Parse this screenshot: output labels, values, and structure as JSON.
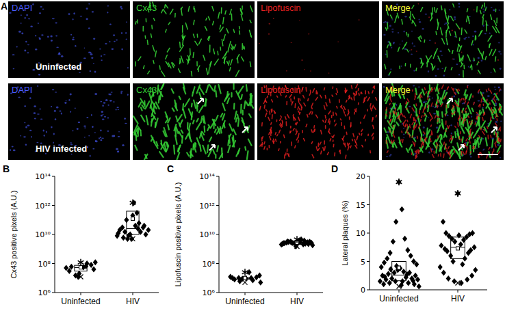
{
  "image_panel": {
    "panel_label": "A",
    "channels": [
      {
        "name": "DAPI",
        "color": "#4a5cff"
      },
      {
        "name": "Cx43",
        "color": "#35d035"
      },
      {
        "name": "Lipofuscin",
        "color": "#e82020"
      },
      {
        "name": "Merge",
        "color": "#f0f030"
      }
    ],
    "rows": [
      "Uninfected",
      "HIV infected"
    ]
  },
  "chart_data": [
    {
      "type": "box",
      "panel_label": "B",
      "y_label": "Cx43 positive pixels (A.U.)",
      "log": "y",
      "marker": "diamond",
      "color": "#000000",
      "xlim": [
        0.5,
        2.5
      ],
      "xticks": [
        {
          "value": 1,
          "label": "Uninfected"
        },
        {
          "value": 2,
          "label": "HIV"
        }
      ],
      "ylim": [
        1000000.0,
        100000000000000.0
      ],
      "yticks": [
        {
          "value": 1000000.0,
          "label": "10⁶"
        },
        {
          "value": 100000000.0,
          "label": "10⁸"
        },
        {
          "value": 10000000000.0,
          "label": "10¹⁰"
        },
        {
          "value": 1000000000000.0,
          "label": "10¹²"
        },
        {
          "value": 100000000000000.0,
          "label": "10¹⁴"
        }
      ],
      "series": [
        {
          "x": [
            0.72,
            0.82,
            0.9,
            0.97,
            1.05,
            1.12,
            1.2,
            1.28,
            0.78,
            0.95,
            1.1,
            1.25
          ],
          "values": [
            50000000.0,
            60000000.0,
            15000000.0,
            20000000.0,
            55000000.0,
            100000000.0,
            80000000.0,
            120000000.0,
            30000000.0,
            12000000.0,
            65000000.0,
            40000000.0
          ],
          "box": {
            "q1": 30000000.0,
            "median": 52000000.0,
            "q3": 75000000.0,
            "mean": 54000000.0,
            "min": 12000000.0,
            "max": 120000000.0
          }
        },
        {
          "x": [
            1.7,
            1.75,
            1.8,
            1.85,
            1.9,
            1.95,
            2.0,
            2.05,
            2.1,
            2.15,
            2.2,
            2.25,
            2.3,
            1.72,
            1.82,
            1.92,
            2.02,
            2.12,
            2.22,
            1.88,
            2.08,
            1.98
          ],
          "values": [
            8000000000.0,
            20000000000.0,
            30000000000.0,
            15000000000.0,
            5000000000.0,
            10000000000.0,
            200000000000.0,
            40000000000.0,
            25000000000.0,
            15000000000.0,
            30000000000.0,
            10000000000.0,
            20000000000.0,
            12000000000.0,
            6000000000.0,
            8000000000.0,
            1500000000000.0,
            60000000000.0,
            40000000000.0,
            100000000000.0,
            300000000000.0,
            5000000000.0
          ],
          "box": {
            "q1": 10000000000.0,
            "median": 25000000000.0,
            "q3": 400000000000.0,
            "mean": 120000000000.0,
            "min": 5000000000.0,
            "max": 1500000000000.0
          }
        }
      ]
    },
    {
      "type": "box",
      "panel_label": "C",
      "y_label": "Lipofuscin positive pixels (A.U.)",
      "log": "y",
      "marker": "diamond",
      "color": "#000000",
      "xlim": [
        0.5,
        2.5
      ],
      "xticks": [
        {
          "value": 1,
          "label": "Uninfected"
        },
        {
          "value": 2,
          "label": "HIV"
        }
      ],
      "ylim": [
        1000000.0,
        100000000000000.0
      ],
      "yticks": [
        {
          "value": 1000000.0,
          "label": "10⁶"
        },
        {
          "value": 100000000.0,
          "label": "10⁸"
        },
        {
          "value": 10000000000.0,
          "label": "10¹⁰"
        },
        {
          "value": 1000000000000.0,
          "label": "10¹²"
        },
        {
          "value": 100000000000000.0,
          "label": "10¹⁴"
        }
      ],
      "series": [
        {
          "x": [
            0.72,
            1.08,
            0.8,
            0.88,
            0.95,
            1.02,
            1.15,
            1.22,
            1.3,
            0.76,
            0.9,
            1.12,
            1.28
          ],
          "values": [
            12000000.0,
            25000000.0,
            8000000.0,
            10000000.0,
            9000000.0,
            9500000.0,
            7000000.0,
            11000000.0,
            5000000.0,
            10000000.0,
            6000000.0,
            10000000.0,
            15000000.0
          ],
          "box": {
            "q1": 8000000.0,
            "median": 9500000.0,
            "q3": 10500000.0,
            "mean": 10000000.0,
            "min": 5000000.0,
            "max": 25000000.0
          }
        },
        {
          "x": [
            1.7,
            1.72,
            1.76,
            1.8,
            1.84,
            1.88,
            1.92,
            1.96,
            2.0,
            2.04,
            2.08,
            2.12,
            2.16,
            2.2,
            2.24,
            2.28,
            2.3,
            1.74,
            1.82,
            1.9,
            1.98,
            2.06,
            2.14,
            2.22,
            2.26
          ],
          "values": [
            2000000000.0,
            2200000000.0,
            2500000000.0,
            2800000000.0,
            3000000000.0,
            3200000000.0,
            2600000000.0,
            2400000000.0,
            2700000000.0,
            3500000000.0,
            4500000000.0,
            2100000000.0,
            2300000000.0,
            2900000000.0,
            3100000000.0,
            2600000000.0,
            1800000000.0,
            2500000000.0,
            3300000000.0,
            2700000000.0,
            1500000000.0,
            2900000000.0,
            3800000000.0,
            2200000000.0,
            2800000000.0
          ],
          "box": {
            "q1": 2200000000.0,
            "median": 2600000000.0,
            "q3": 3000000000.0,
            "mean": 2700000000.0,
            "min": 1500000000.0,
            "max": 4500000000.0
          }
        }
      ]
    },
    {
      "type": "box",
      "panel_label": "D",
      "y_label": "Lateral plaques (%)",
      "marker": "diamond",
      "color": "#000000",
      "xlim": [
        0.5,
        2.5
      ],
      "xticks": [
        {
          "value": 1,
          "label": "Uninfected"
        },
        {
          "value": 2,
          "label": "HIV"
        }
      ],
      "ylim": [
        0,
        20
      ],
      "yticks": [
        0,
        5,
        10,
        15,
        20
      ],
      "series": [
        {
          "x": [
            1.0,
            1.05,
            0.95,
            1.1,
            0.9,
            1.15,
            0.85,
            1.2,
            0.8,
            1.25,
            0.75,
            1.3,
            0.7,
            1.02,
            0.98,
            1.08,
            0.92,
            1.18,
            0.82,
            1.28,
            0.72,
            1.12,
            0.88,
            1.22,
            0.78,
            1.32,
            0.68,
            1.06,
            0.94,
            1.16,
            0.84,
            1.26,
            0.74,
            1.04,
            0.96,
            1.14,
            0.86,
            1.24,
            0.76,
            1.34
          ],
          "values": [
            19,
            14.2,
            12,
            9,
            8.5,
            7,
            6.5,
            6,
            5.5,
            5,
            4.8,
            4.5,
            4,
            3.8,
            3.5,
            3.2,
            3,
            3,
            2.8,
            2.5,
            2.5,
            2.2,
            2,
            2,
            1.8,
            1.8,
            1.5,
            1.5,
            1.5,
            1.2,
            1.2,
            1,
            1,
            0.8,
            4.2,
            2.7,
            3.6,
            1.6,
            2.3,
            0.6
          ],
          "box": {
            "q1": 1.6,
            "median": 2.6,
            "q3": 5,
            "mean": 3.9,
            "min": 0.6,
            "max": 19
          }
        },
        {
          "x": [
            2.0,
            1.75,
            2.25,
            1.8,
            2.2,
            1.85,
            2.15,
            1.9,
            2.1,
            1.95,
            2.05,
            1.72,
            2.28,
            1.78,
            2.22,
            1.82,
            2.18,
            1.88,
            2.12,
            1.92,
            2.08,
            1.7,
            2.3,
            1.76,
            2.24,
            1.84,
            2.16,
            1.94,
            2.06,
            2.02
          ],
          "values": [
            17,
            12,
            10,
            10,
            9.8,
            9.5,
            9.3,
            9,
            8.8,
            8.5,
            8,
            7.8,
            7.5,
            7.2,
            7,
            6.8,
            6.5,
            6,
            5.5,
            5,
            4.5,
            4,
            3.5,
            3,
            2.5,
            2,
            1.8,
            1.5,
            1.2,
            9.6
          ],
          "box": {
            "q1": 5.5,
            "median": 7.5,
            "q3": 9.3,
            "mean": 7.3,
            "min": 1.2,
            "max": 17
          }
        }
      ]
    }
  ]
}
